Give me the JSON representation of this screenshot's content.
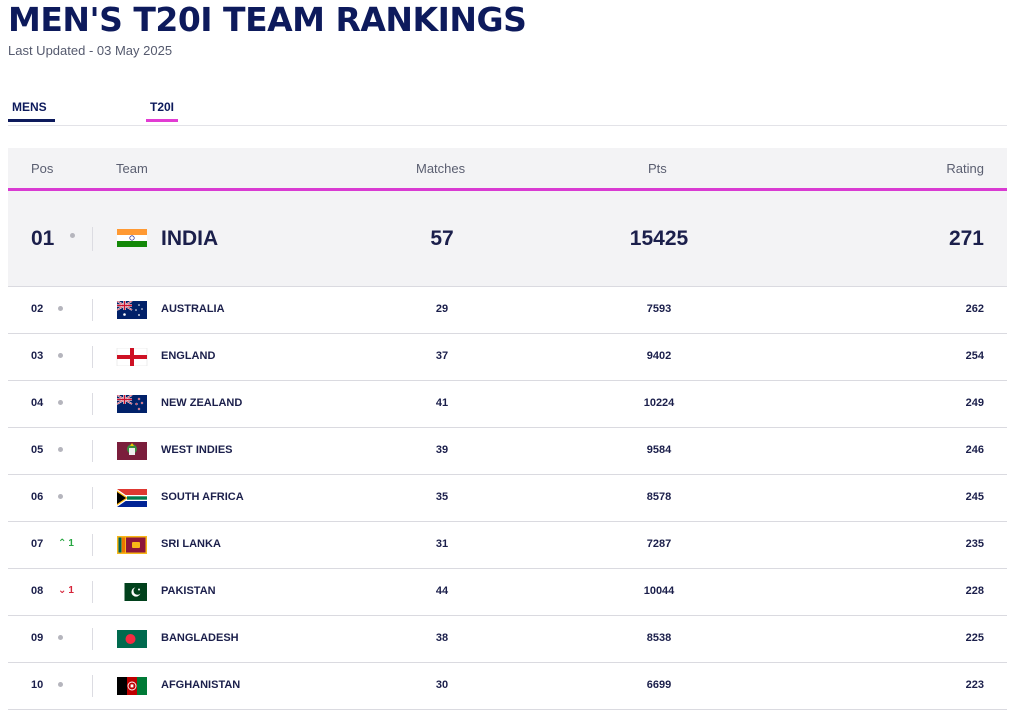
{
  "page": {
    "title": "MEN'S T20I TEAM RANKINGS",
    "last_updated": "Last Updated - 03 May 2025"
  },
  "tabs": [
    {
      "label": "MENS"
    },
    {
      "label": "T20I"
    }
  ],
  "columns": {
    "pos": "Pos",
    "team": "Team",
    "matches": "Matches",
    "pts": "Pts",
    "rating": "Rating"
  },
  "colors": {
    "title": "#0d1a5c",
    "accent_pink": "#d93ad2",
    "up": "#27a641",
    "down": "#d6243a"
  },
  "rows": [
    {
      "pos": "01",
      "movement": "none",
      "change": "",
      "team": "INDIA",
      "flag": "india-flag",
      "matches": "57",
      "pts": "15425",
      "rating": "271"
    },
    {
      "pos": "02",
      "movement": "none",
      "change": "",
      "team": "AUSTRALIA",
      "flag": "australia-flag",
      "matches": "29",
      "pts": "7593",
      "rating": "262"
    },
    {
      "pos": "03",
      "movement": "none",
      "change": "",
      "team": "ENGLAND",
      "flag": "england-flag",
      "matches": "37",
      "pts": "9402",
      "rating": "254"
    },
    {
      "pos": "04",
      "movement": "none",
      "change": "",
      "team": "NEW ZEALAND",
      "flag": "new-zealand-flag",
      "matches": "41",
      "pts": "10224",
      "rating": "249"
    },
    {
      "pos": "05",
      "movement": "none",
      "change": "",
      "team": "WEST INDIES",
      "flag": "west-indies-flag",
      "matches": "39",
      "pts": "9584",
      "rating": "246"
    },
    {
      "pos": "06",
      "movement": "none",
      "change": "",
      "team": "SOUTH AFRICA",
      "flag": "south-africa-flag",
      "matches": "35",
      "pts": "8578",
      "rating": "245"
    },
    {
      "pos": "07",
      "movement": "up",
      "change": "1",
      "team": "SRI LANKA",
      "flag": "sri-lanka-flag",
      "matches": "31",
      "pts": "7287",
      "rating": "235"
    },
    {
      "pos": "08",
      "movement": "down",
      "change": "1",
      "team": "PAKISTAN",
      "flag": "pakistan-flag",
      "matches": "44",
      "pts": "10044",
      "rating": "228"
    },
    {
      "pos": "09",
      "movement": "none",
      "change": "",
      "team": "BANGLADESH",
      "flag": "bangladesh-flag",
      "matches": "38",
      "pts": "8538",
      "rating": "225"
    },
    {
      "pos": "10",
      "movement": "none",
      "change": "",
      "team": "AFGHANISTAN",
      "flag": "afghanistan-flag",
      "matches": "30",
      "pts": "6699",
      "rating": "223"
    }
  ]
}
